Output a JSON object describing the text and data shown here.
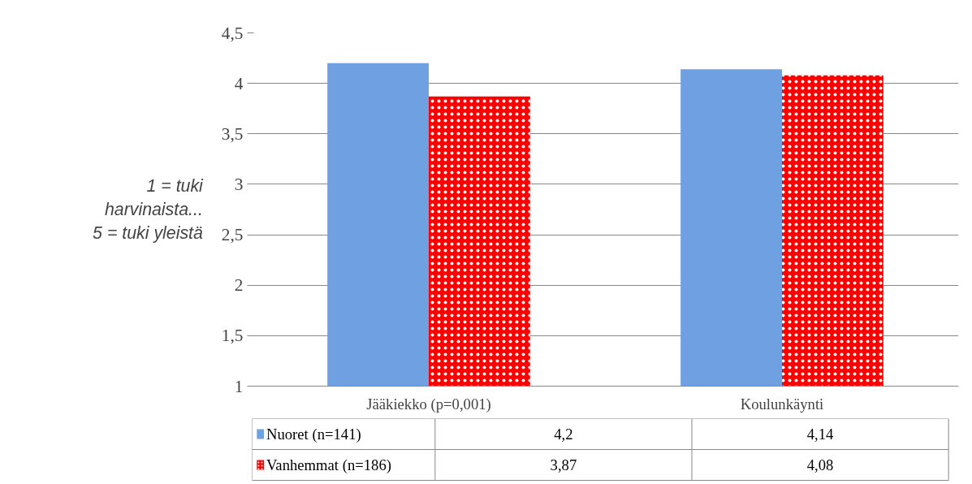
{
  "chart_data": {
    "type": "bar",
    "ylabel": "1 = tuki\nharvinaista...\n5 = tuki yleistä",
    "categories": [
      "Jääkiekko (p=0,001)",
      "Koulunkäynti"
    ],
    "series": [
      {
        "name": "Nuoret (n=141)",
        "color": "#6fa0e2",
        "values": [
          4.2,
          4.14
        ],
        "value_labels": [
          "4,2",
          "4,14"
        ]
      },
      {
        "name": "Vanhemmat (n=186)",
        "color": "#ff0000",
        "values": [
          3.87,
          4.08
        ],
        "value_labels": [
          "3,87",
          "4,08"
        ]
      }
    ],
    "ylim": [
      1,
      4.5
    ],
    "yticks": [
      1,
      {
        "value": 1.5,
        "label": "1,5"
      },
      2,
      {
        "value": 2.5,
        "label": "2,5"
      },
      3,
      {
        "value": 3.5,
        "label": "3,5"
      },
      4,
      {
        "value": 4.5,
        "label": "4,5"
      }
    ],
    "grid": "y",
    "legend": "bottom left"
  }
}
